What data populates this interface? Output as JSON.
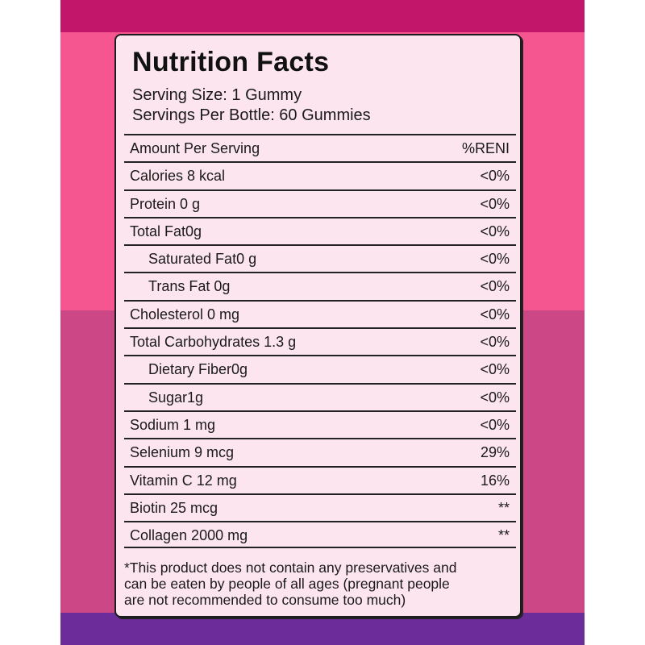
{
  "colors": {
    "band_top": "#c2166a",
    "band_pink": "#f5568f",
    "band_mauve": "#cc4785",
    "band_purple": "#6c2c9a",
    "label_bg": "#fde5ef"
  },
  "label": {
    "title": "Nutrition Facts",
    "serving_size": "Serving Size: 1 Gummy",
    "servings_per_bottle": "Servings Per Bottle: 60 Gummies",
    "header": {
      "name": "Amount Per Serving",
      "pct": "%RENI"
    },
    "rows": [
      {
        "name": "Calories 8 kcal",
        "pct": "<0%"
      },
      {
        "name": "Protein 0 g",
        "pct": "<0%"
      },
      {
        "name": "Total Fat0g",
        "pct": "<0%"
      },
      {
        "name": "Saturated Fat0 g",
        "pct": "<0%"
      },
      {
        "name": "Trans Fat 0g",
        "pct": "<0%"
      },
      {
        "name": "Cholesterol 0 mg",
        "pct": "<0%"
      },
      {
        "name": "Total Carbohydrates 1.3 g",
        "pct": "<0%"
      },
      {
        "name": "Dietary Fiber0g",
        "pct": "<0%"
      },
      {
        "name": "Sugar1g",
        "pct": "<0%"
      },
      {
        "name": "Sodium 1 mg",
        "pct": "<0%"
      },
      {
        "name": "Selenium 9 mcg",
        "pct": "29%"
      },
      {
        "name": "Vitamin C 12 mg",
        "pct": "16%"
      },
      {
        "name": "Biotin 25 mcg",
        "pct": "**"
      },
      {
        "name": "Collagen 2000 mg",
        "pct": "**"
      }
    ],
    "footnote_lines": [
      "*This product does not contain any preservatives and",
      "can be eaten by people of all ages (pregnant people",
      "are not recommended to consume too much)"
    ]
  }
}
